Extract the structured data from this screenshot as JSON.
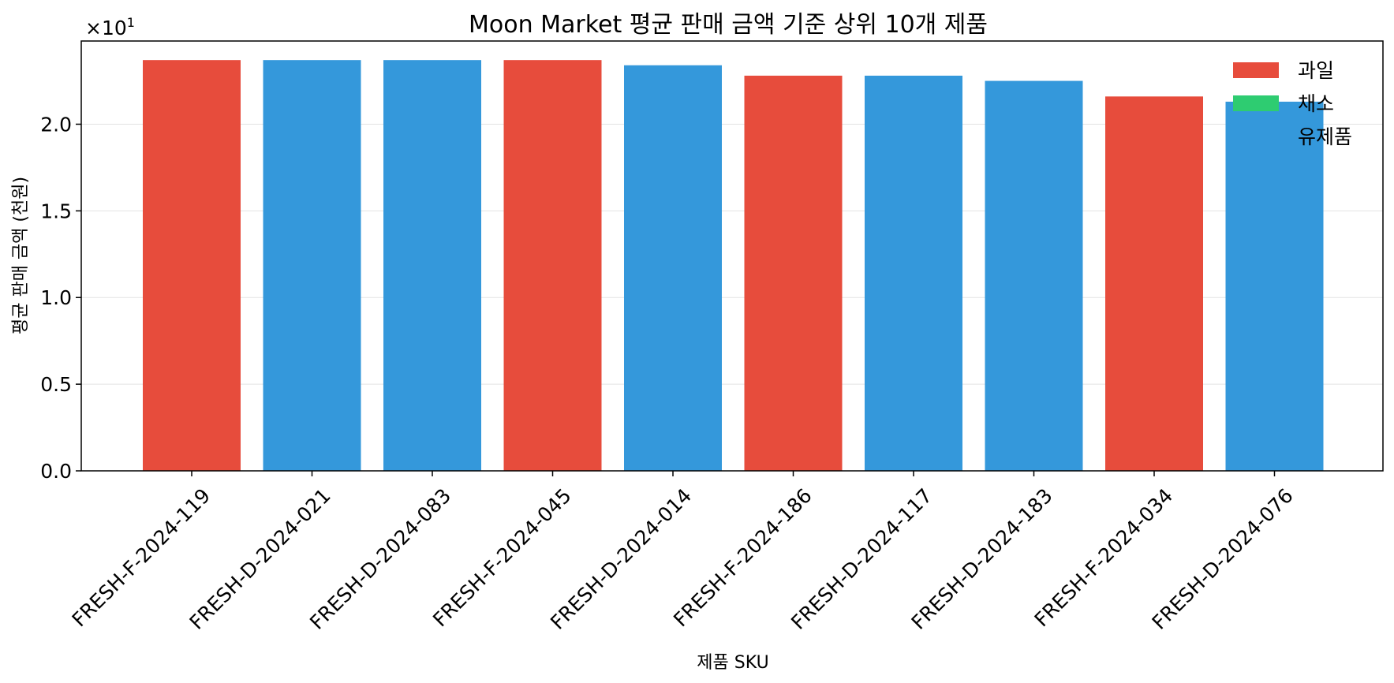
{
  "chart_data": {
    "type": "bar",
    "title": "Moon Market 평균 판매 금액 기준 상위 10개 제품",
    "xlabel": "제품 SKU",
    "ylabel": "평균 판매 금액 (천원)",
    "y_offset_text": "×10",
    "y_offset_exponent": "1",
    "ylim": [
      0,
      2.48
    ],
    "yticks": [
      0.0,
      0.5,
      1.0,
      1.5,
      2.0
    ],
    "ytick_labels": [
      "0.0",
      "0.5",
      "1.0",
      "1.5",
      "2.0"
    ],
    "grid": "y",
    "legend_position": "top-right",
    "categories": [
      "FRESH-F-2024-119",
      "FRESH-D-2024-021",
      "FRESH-D-2024-083",
      "FRESH-F-2024-045",
      "FRESH-D-2024-014",
      "FRESH-F-2024-186",
      "FRESH-D-2024-117",
      "FRESH-D-2024-183",
      "FRESH-F-2024-034",
      "FRESH-D-2024-076"
    ],
    "values": [
      2.37,
      2.37,
      2.37,
      2.37,
      2.34,
      2.28,
      2.28,
      2.25,
      2.16,
      2.13
    ],
    "bar_groups": [
      "과일",
      "유제품",
      "유제품",
      "과일",
      "유제품",
      "과일",
      "유제품",
      "유제품",
      "과일",
      "유제품"
    ],
    "legend": [
      {
        "label": "과일",
        "color": "#e74c3c"
      },
      {
        "label": "채소",
        "color": "#2ecc71"
      },
      {
        "label": "유제품",
        "color": "#3498db"
      }
    ],
    "colors": {
      "과일": "#e74c3c",
      "채소": "#2ecc71",
      "유제품": "#3498db"
    }
  }
}
